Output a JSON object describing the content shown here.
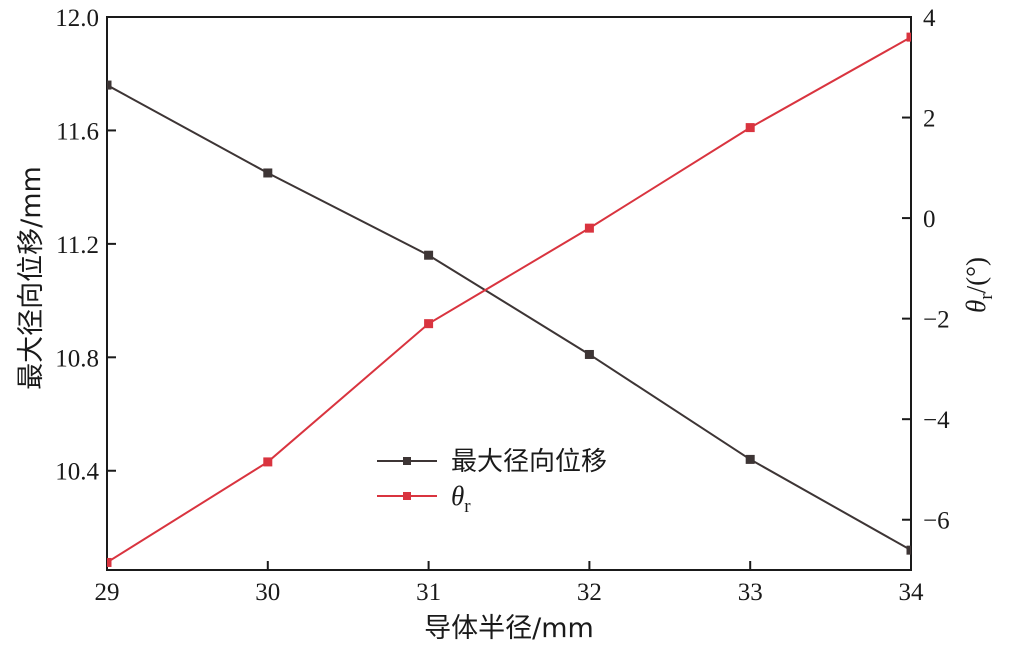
{
  "chart_data": {
    "type": "line",
    "x": [
      29,
      30,
      31,
      32,
      33,
      34
    ],
    "xlabel": "导体半径/mm",
    "xlim": [
      29,
      34
    ],
    "x_ticks": [
      "29",
      "30",
      "31",
      "32",
      "33",
      "34"
    ],
    "ylabel_left": "最大径向位移/mm",
    "ylim_left": [
      10.05,
      12.0
    ],
    "y_ticks_left": [
      "10.4",
      "10.8",
      "11.2",
      "11.6",
      "12.0"
    ],
    "ylabel_right_symbol": "θ",
    "ylabel_right_subscript": "r",
    "ylabel_right_unit": "/(°)",
    "ylim_right": [
      -7.0,
      4.0
    ],
    "y_ticks_right": [
      "−6",
      "−4",
      "−2",
      "0",
      "2",
      "4"
    ],
    "grid": false,
    "legend_position": "lower-center",
    "series": [
      {
        "name": "最大径向位移",
        "axis": "left",
        "color": "#3d3535",
        "marker": "square",
        "values": [
          11.76,
          11.45,
          11.16,
          10.81,
          10.44,
          10.12
        ]
      },
      {
        "name_symbol": "θ",
        "name_subscript": "r",
        "axis": "right",
        "color": "#d9343f",
        "marker": "square",
        "values": [
          -6.85,
          -4.85,
          -2.1,
          -0.2,
          1.8,
          3.6
        ]
      }
    ]
  }
}
